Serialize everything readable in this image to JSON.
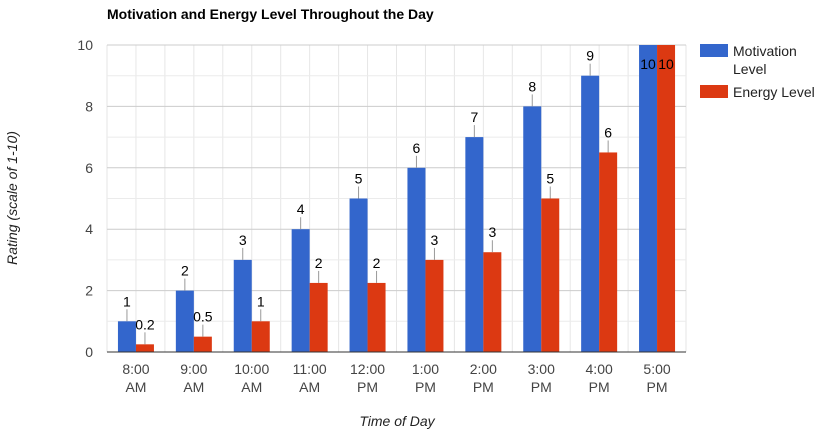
{
  "chart_data": {
    "type": "bar",
    "title": "Motivation and Energy Level Throughout the Day",
    "xlabel": "Time of Day",
    "ylabel": "Rating (scale of 1-10)",
    "ylim": [
      0,
      10
    ],
    "yticks": [
      0,
      2,
      4,
      6,
      8,
      10
    ],
    "categories": [
      [
        "8:00",
        "AM"
      ],
      [
        "9:00",
        "AM"
      ],
      [
        "10:00",
        "AM"
      ],
      [
        "11:00",
        "AM"
      ],
      [
        "12:00",
        "PM"
      ],
      [
        "1:00",
        "PM"
      ],
      [
        "2:00",
        "PM"
      ],
      [
        "3:00",
        "PM"
      ],
      [
        "4:00",
        "PM"
      ],
      [
        "5:00",
        "PM"
      ]
    ],
    "series": [
      {
        "name": "Motivation Level",
        "legend_lines": [
          "Motivation",
          "Level"
        ],
        "color": "#3366cc",
        "values": [
          1,
          2,
          3,
          4,
          5,
          6,
          7,
          8,
          9,
          10
        ],
        "labels": [
          "1",
          "2",
          "3",
          "4",
          "5",
          "6",
          "7",
          "8",
          "9",
          "10"
        ]
      },
      {
        "name": "Energy Level",
        "legend_lines": [
          "Energy Level"
        ],
        "color": "#dc3912",
        "values": [
          0.25,
          0.5,
          1,
          2.25,
          2.25,
          3,
          3.25,
          5,
          6.5,
          10
        ],
        "labels": [
          "0.2",
          "0.5",
          "1",
          "2",
          "2",
          "3",
          "3",
          "5",
          "6",
          "10"
        ]
      }
    ],
    "grid": true,
    "legend": "right"
  }
}
